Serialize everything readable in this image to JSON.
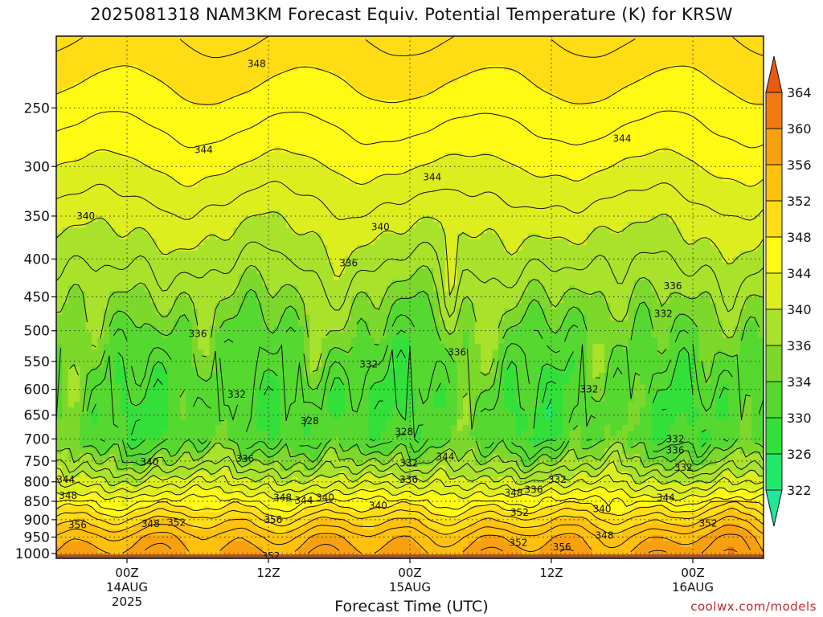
{
  "chart_data": {
    "type": "heatmap",
    "title": "2025081318 NAM3KM Forecast Equiv. Potential Temperature (K) for KRSW",
    "xlabel": "Forecast Time (UTC)",
    "ylabel": "",
    "y_axis": {
      "scale": "pressure (hPa), log-like",
      "ticks": [
        250,
        300,
        350,
        400,
        450,
        500,
        550,
        600,
        650,
        700,
        750,
        800,
        850,
        900,
        950,
        1000
      ],
      "range": [
        200,
        1015
      ]
    },
    "x_axis": {
      "range": [
        "2025-08-13 18Z",
        "2025-08-16 06Z"
      ],
      "ticks": [
        {
          "label": "00Z",
          "sub": "14AUG",
          "sub2": "2025",
          "hour": 6
        },
        {
          "label": "12Z",
          "sub": "",
          "sub2": "",
          "hour": 18
        },
        {
          "label": "00Z",
          "sub": "15AUG",
          "sub2": "",
          "hour": 30
        },
        {
          "label": "12Z",
          "sub": "",
          "sub2": "",
          "hour": 42
        },
        {
          "label": "00Z",
          "sub": "16AUG",
          "sub2": "",
          "hour": 54
        }
      ]
    },
    "grid": true,
    "colorbar": {
      "unit": "K",
      "labels": [
        322,
        326,
        330,
        334,
        336,
        340,
        344,
        348,
        352,
        356,
        360,
        364
      ],
      "colors": [
        "#1fe89a",
        "#22e86a",
        "#33e03a",
        "#55d830",
        "#7cd82a",
        "#a8e22a",
        "#dcee1e",
        "#fffa14",
        "#ffdc14",
        "#ffc00e",
        "#f8a010",
        "#f07a10",
        "#e85a10"
      ]
    },
    "contour_labels": [
      {
        "text": "348",
        "hour": 17,
        "p": 218
      },
      {
        "text": "344",
        "hour": 48,
        "p": 275
      },
      {
        "text": "344",
        "hour": 12.5,
        "p": 285
      },
      {
        "text": "344",
        "hour": 31.9,
        "p": 310
      },
      {
        "text": "340",
        "hour": 2.5,
        "p": 350
      },
      {
        "text": "340",
        "hour": 27.5,
        "p": 362
      },
      {
        "text": "336",
        "hour": 24.8,
        "p": 405
      },
      {
        "text": "336",
        "hour": 52.3,
        "p": 435
      },
      {
        "text": "332",
        "hour": 51.5,
        "p": 474
      },
      {
        "text": "336",
        "hour": 12,
        "p": 505
      },
      {
        "text": "336",
        "hour": 34,
        "p": 535
      },
      {
        "text": "332",
        "hour": 26.5,
        "p": 555
      },
      {
        "text": "332",
        "hour": 45.2,
        "p": 600
      },
      {
        "text": "332",
        "hour": 15.3,
        "p": 610
      },
      {
        "text": "328",
        "hour": 21.5,
        "p": 662
      },
      {
        "text": "328",
        "hour": 29.5,
        "p": 685
      },
      {
        "text": "332",
        "hour": 52.5,
        "p": 700
      },
      {
        "text": "336",
        "hour": 52.5,
        "p": 725
      },
      {
        "text": "340",
        "hour": 7.9,
        "p": 752
      },
      {
        "text": "336",
        "hour": 16,
        "p": 745
      },
      {
        "text": "344",
        "hour": 33,
        "p": 740
      },
      {
        "text": "332",
        "hour": 29.9,
        "p": 755
      },
      {
        "text": "332",
        "hour": 53.2,
        "p": 765
      },
      {
        "text": "344",
        "hour": 0.8,
        "p": 795
      },
      {
        "text": "336",
        "hour": 29.9,
        "p": 795
      },
      {
        "text": "332",
        "hour": 42.5,
        "p": 795
      },
      {
        "text": "348",
        "hour": 1,
        "p": 835
      },
      {
        "text": "336",
        "hour": 40.5,
        "p": 820
      },
      {
        "text": "348",
        "hour": 19.2,
        "p": 840
      },
      {
        "text": "344",
        "hour": 21,
        "p": 848
      },
      {
        "text": "340",
        "hour": 22.8,
        "p": 840
      },
      {
        "text": "348",
        "hour": 38.8,
        "p": 828
      },
      {
        "text": "344",
        "hour": 51.7,
        "p": 840
      },
      {
        "text": "340",
        "hour": 27.3,
        "p": 862
      },
      {
        "text": "340",
        "hour": 46.3,
        "p": 870
      },
      {
        "text": "352",
        "hour": 39.3,
        "p": 880
      },
      {
        "text": "356",
        "hour": 18.4,
        "p": 900
      },
      {
        "text": "356",
        "hour": 1.8,
        "p": 915
      },
      {
        "text": "348",
        "hour": 8,
        "p": 912
      },
      {
        "text": "352",
        "hour": 10.2,
        "p": 908
      },
      {
        "text": "352",
        "hour": 55.3,
        "p": 910
      },
      {
        "text": "348",
        "hour": 46.5,
        "p": 945
      },
      {
        "text": "352",
        "hour": 39.2,
        "p": 967
      },
      {
        "text": "356",
        "hour": 42.9,
        "p": 980
      },
      {
        "text": "352",
        "hour": 18.2,
        "p": 1007
      }
    ]
  },
  "watermark": "coolwx.com/models"
}
